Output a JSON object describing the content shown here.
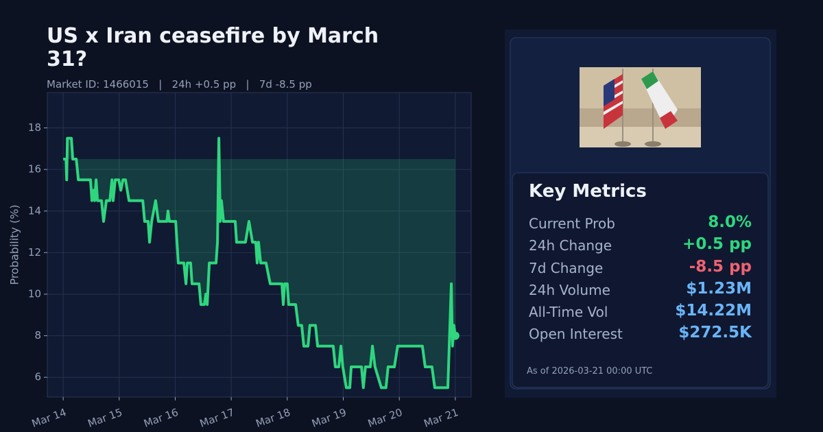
{
  "chart_data": {
    "type": "line",
    "title": "US x Iran ceasefire by March 31?",
    "subtitle": "Market ID: 1466015   |   24h +0.5 pp   |   7d -8.5 pp",
    "y_label": "Probability (%)",
    "x": [
      0,
      1.2,
      1.5,
      1.8,
      3.5,
      4.1,
      5.6,
      6.5,
      11.7,
      12.3,
      12.9,
      13.5,
      14.1,
      14.7,
      16.4,
      17.3,
      18.5,
      20.0,
      20.9,
      21.4,
      22.3,
      23.8,
      24.7,
      25.6,
      26.7,
      28.2,
      34.1,
      34.9,
      36.4,
      37.0,
      37.9,
      39.6,
      40.8,
      44.4,
      44.9,
      45.5,
      48.2,
      49.3,
      51.7,
      52.6,
      53.2,
      54.6,
      55.2,
      58.2,
      59.0,
      60.5,
      61.1,
      61.7,
      62.6,
      65.5,
      66.1,
      66.7,
      67.3,
      67.8,
      68.7,
      73.7,
      74.3,
      78.1,
      79.6,
      81.1,
      82.5,
      83.1,
      83.7,
      84.6,
      86.9,
      88.7,
      93.7,
      94.3,
      94.9,
      96.0,
      96.6,
      99.6,
      100.7,
      102.2,
      103.1,
      104.9,
      105.7,
      108.1,
      109.0,
      115.7,
      116.6,
      118.1,
      119.0,
      119.8,
      121.3,
      122.8,
      123.4,
      127.8,
      128.6,
      129.5,
      131.6,
      132.5,
      133.6,
      136.3,
      138.3,
      139.2,
      141.9,
      143.3,
      153.9,
      155.1,
      158.0,
      159.2,
      164.8,
      165.4,
      166.3,
      166.8,
      167.4,
      168.0
    ],
    "series": [
      {
        "name": "Probability",
        "color": "#2fd67e",
        "values": [
          16.5,
          16.5,
          15.5,
          17.5,
          17.5,
          16.5,
          16.5,
          15.5,
          15.5,
          14.5,
          15,
          14.5,
          15.5,
          14.5,
          14.5,
          13.5,
          14.5,
          14.5,
          15.5,
          14.5,
          15.5,
          15.5,
          15,
          15.5,
          15.5,
          14.5,
          14.5,
          13.5,
          13.5,
          12.5,
          13.5,
          14.5,
          13.5,
          13.5,
          14,
          13.5,
          13.5,
          11.5,
          11.5,
          10.5,
          11.5,
          11.5,
          10.5,
          10.5,
          9.5,
          9.5,
          10,
          9.5,
          11.5,
          11.5,
          12.5,
          17.5,
          13.5,
          14.5,
          13.5,
          13.5,
          12.5,
          12.5,
          13.5,
          12.5,
          12.5,
          11.5,
          12.5,
          11.5,
          11.5,
          10.5,
          10.5,
          9.5,
          10.5,
          10.5,
          9.5,
          9.5,
          8.5,
          8.5,
          7.5,
          7.5,
          8.5,
          8.5,
          7.5,
          7.5,
          6.5,
          6.5,
          7.5,
          6.5,
          5.5,
          5.5,
          6.5,
          6.5,
          5.5,
          6.5,
          6.5,
          7.5,
          6.5,
          5.5,
          5.5,
          6.5,
          6.5,
          7.5,
          7.5,
          6.5,
          6.5,
          5.5,
          5.5,
          7.5,
          10.5,
          7.5,
          8.5,
          8
        ]
      }
    ],
    "xlim": [
      -6.8,
      174.8
    ],
    "xticks": [
      {
        "value": 0,
        "label": "Mar 14"
      },
      {
        "value": 24,
        "label": "Mar 15"
      },
      {
        "value": 48,
        "label": "Mar 16"
      },
      {
        "value": 72,
        "label": "Mar 17"
      },
      {
        "value": 96,
        "label": "Mar 18"
      },
      {
        "value": 120,
        "label": "Mar 19"
      },
      {
        "value": 144,
        "label": "Mar 20"
      },
      {
        "value": 168,
        "label": "Mar 21"
      }
    ],
    "ylim": [
      5.05,
      19.7
    ],
    "yticks": [
      6,
      8,
      10,
      12,
      14,
      16,
      18
    ],
    "grid": true
  },
  "panel": {
    "title": "Key Metrics",
    "metrics": [
      [
        "Current Prob",
        "8.0%"
      ],
      [
        "24h Change",
        "+0.5 pp"
      ],
      [
        "7d Change",
        "-8.5 pp"
      ],
      [
        "24h Volume",
        "$1.23M"
      ],
      [
        "All-Time Vol",
        "$14.22M"
      ],
      [
        "Open Interest",
        "$272.5K"
      ]
    ],
    "footer": "As of 2026-03-21 00:00 UTC"
  }
}
